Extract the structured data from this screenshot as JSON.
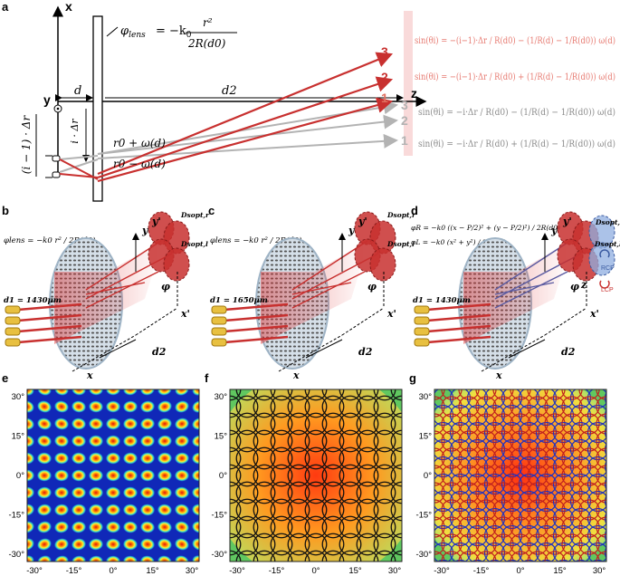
{
  "panel_labels": [
    "a",
    "b",
    "c",
    "d",
    "e",
    "f",
    "g"
  ],
  "panel_a": {
    "axis_x": "x",
    "axis_y": "y",
    "axis_z": "z",
    "phase_eq": "φlens = −k0 r² / 2R(d0)",
    "phase_lhs": "φ",
    "phase_lhs_sub": "lens",
    "phase_rhs_k": "= −k",
    "phase_rhs_k_sub": "0",
    "phase_num": "r²",
    "phase_den": "2R(d0)",
    "d_label": "d",
    "d2_label": "d2",
    "i_dr": "i · Δr",
    "i1_dr": "(i − 1) · Δr",
    "r0_plus": "r0 + ω(d)",
    "r0_minus": "r0 − ω(d)",
    "ray_numbers_red": [
      "3",
      "2",
      "1"
    ],
    "ray_numbers_gray": [
      "3",
      "2",
      "1"
    ],
    "eq_red_1": "sin(θi) = −(i−1)·Δr / R(d0) − (1/R(d) − 1/R(d0)) ω(d)",
    "eq_red_2": "sin(θi) = −(i−1)·Δr / R(d0) + (1/R(d) − 1/R(d0)) ω(d)",
    "eq_gray_1": "sin(θi) = −i·Δr / R(d0) − (1/R(d) − 1/R(d0)) ω(d)",
    "eq_gray_2": "sin(θi) = −i·Δr / R(d0) + (1/R(d) − 1/R(d0)) ω(d)"
  },
  "panel_b": {
    "phase": "φlens = −k0 r² / 2R(d0)",
    "d1": "d1 = 1430μm",
    "labels": [
      "y",
      "y'",
      "x",
      "x'",
      "φ",
      "d2",
      "Dsopt,r",
      "Dsopt,l"
    ]
  },
  "panel_c": {
    "phase": "φlens = −k0 r² / 2R(d0)",
    "d1": "d1 = 1650μm",
    "labels": [
      "y",
      "y'",
      "x",
      "x'",
      "φ",
      "d2",
      "Dsopt,r",
      "Dsopt,l"
    ]
  },
  "panel_d": {
    "phase_R": "φR = −k0 ((x − P/2)² + (y − P/2)²) / 2R(d0)",
    "phase_L": "φL = −k0 (x² + y²) / 2R(d0)",
    "d1": "d1 = 1430μm",
    "labels": [
      "y",
      "y'",
      "x",
      "x'",
      "z",
      "φ",
      "d2",
      "Dsopt,r",
      "Dsopt,l"
    ],
    "rcp": "RCP",
    "lcp": "LCP"
  },
  "maps": {
    "y_ticks": [
      "30°",
      "15°",
      "0°",
      "-15°",
      "-30°"
    ],
    "x_ticks": [
      "-30°",
      "-15°",
      "0°",
      "15°",
      "30°"
    ]
  },
  "colors": {
    "red_ray": "#c8302f",
    "gray_ray": "#b3b3b3",
    "eq_red": "#e77b72",
    "eq_gray": "#8c8c8c",
    "panel_bg_pink": "#f9dada"
  }
}
